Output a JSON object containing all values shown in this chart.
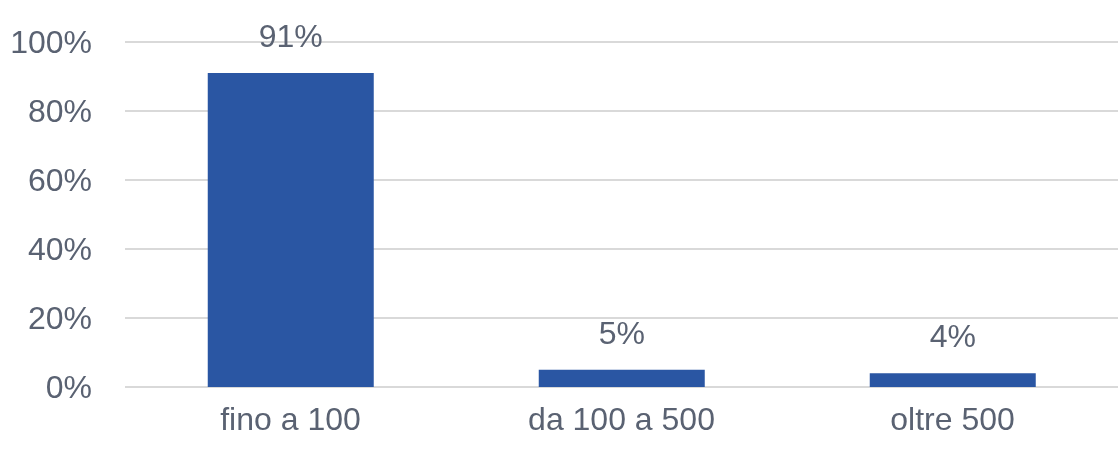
{
  "chart_data": {
    "type": "bar",
    "categories": [
      "fino a 100",
      "da 100 a 500",
      "oltre 500"
    ],
    "values": [
      91,
      5,
      4
    ],
    "color": "#2a56a3",
    "value_labels": [
      "91%",
      "5%",
      "4%"
    ],
    "ylim": [
      0,
      100
    ],
    "yticks": [
      {
        "value": 0,
        "label": "0%"
      },
      {
        "value": 20,
        "label": "20%"
      },
      {
        "value": 40,
        "label": "40%"
      },
      {
        "value": 60,
        "label": "60%"
      },
      {
        "value": 80,
        "label": "80%"
      },
      {
        "value": 100,
        "label": "100%"
      }
    ],
    "grid": "y"
  }
}
